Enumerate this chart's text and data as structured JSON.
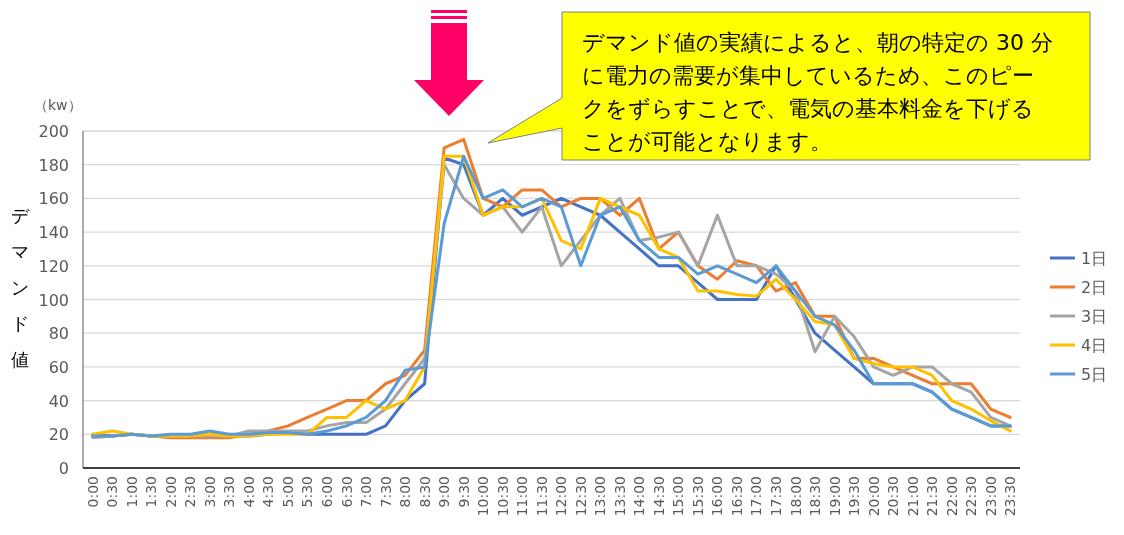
{
  "chart_data": {
    "type": "line",
    "ylabel": "デマンド値",
    "annotations": [
      "（kw）",
      "デマンド値の実績によると、朝の特定の 30 分に電力の需要が集中しているため、このピークをずらすことで、電気の基本料金を下げることが可能となります。"
    ],
    "categories": [
      "0:00",
      "0:30",
      "1:00",
      "1:30",
      "2:00",
      "2:30",
      "3:00",
      "3:30",
      "4:00",
      "4:30",
      "5:00",
      "5:30",
      "6:00",
      "6:30",
      "7:00",
      "7:30",
      "8:00",
      "8:30",
      "9:00",
      "9:30",
      "10:00",
      "10:30",
      "11:00",
      "11:30",
      "12:00",
      "12:30",
      "13:00",
      "13:30",
      "14:00",
      "14:30",
      "15:00",
      "15:30",
      "16:00",
      "16:30",
      "17:00",
      "17:30",
      "18:00",
      "18:30",
      "19:00",
      "19:30",
      "20:00",
      "20:30",
      "21:00",
      "21:30",
      "22:00",
      "22:30",
      "23:00",
      "23:30"
    ],
    "ylim": [
      0,
      200
    ],
    "yticks": [
      0,
      20,
      40,
      60,
      80,
      100,
      120,
      140,
      160,
      180,
      200
    ],
    "grid": "y",
    "legend": "right",
    "marker": "none",
    "line_style": "solid",
    "series": [
      {
        "name": "1日",
        "color": "#4472c4",
        "values": [
          20,
          19,
          20,
          19,
          19,
          19,
          20,
          19,
          19,
          20,
          21,
          20,
          20,
          20,
          20,
          25,
          40,
          50,
          184,
          180,
          150,
          160,
          150,
          155,
          160,
          155,
          150,
          140,
          130,
          120,
          120,
          110,
          100,
          100,
          100,
          120,
          100,
          80,
          70,
          60,
          50,
          50,
          50,
          45,
          35,
          30,
          25,
          25
        ]
      },
      {
        "name": "2日",
        "color": "#ed7d31",
        "values": [
          19,
          19,
          20,
          19,
          18,
          18,
          18,
          18,
          20,
          22,
          25,
          30,
          35,
          40,
          40,
          50,
          55,
          70,
          190,
          195,
          160,
          155,
          165,
          165,
          155,
          160,
          160,
          150,
          160,
          130,
          140,
          120,
          112,
          123,
          120,
          105,
          110,
          90,
          90,
          65,
          65,
          60,
          55,
          50,
          50,
          50,
          35,
          30
        ]
      },
      {
        "name": "3日",
        "color": "#a5a5a5",
        "values": [
          18,
          19,
          20,
          19,
          19,
          19,
          19,
          19,
          22,
          22,
          22,
          22,
          25,
          27,
          27,
          35,
          50,
          65,
          180,
          160,
          150,
          155,
          140,
          155,
          120,
          135,
          150,
          160,
          135,
          137,
          140,
          120,
          150,
          120,
          120,
          115,
          105,
          69,
          90,
          78,
          60,
          55,
          60,
          60,
          50,
          45,
          30,
          25
        ]
      },
      {
        "name": "4日",
        "color": "#ffc000",
        "values": [
          20,
          22,
          20,
          19,
          19,
          19,
          20,
          19,
          19,
          20,
          20,
          20,
          30,
          30,
          40,
          35,
          40,
          60,
          185,
          185,
          150,
          155,
          155,
          160,
          135,
          130,
          160,
          155,
          150,
          130,
          125,
          105,
          105,
          103,
          102,
          112,
          100,
          87,
          85,
          65,
          62,
          60,
          60,
          55,
          40,
          35,
          28,
          22
        ]
      },
      {
        "name": "5日",
        "color": "#5b9bd5",
        "values": [
          19,
          19,
          20,
          19,
          20,
          20,
          22,
          20,
          20,
          21,
          21,
          20,
          22,
          25,
          30,
          40,
          58,
          60,
          145,
          185,
          160,
          165,
          155,
          160,
          155,
          120,
          150,
          155,
          135,
          125,
          125,
          115,
          120,
          115,
          110,
          120,
          105,
          90,
          85,
          70,
          50,
          50,
          50,
          45,
          35,
          30,
          25,
          25
        ]
      }
    ]
  }
}
